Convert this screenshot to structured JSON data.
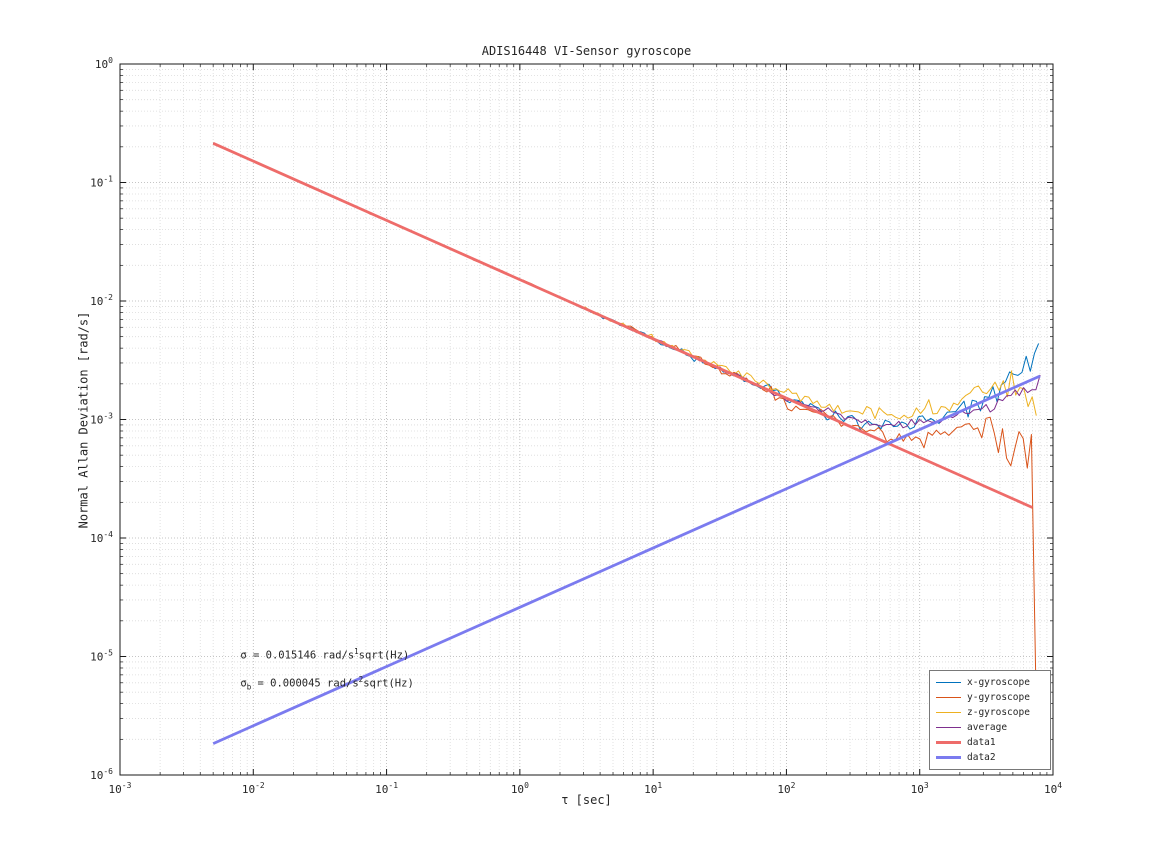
{
  "chart_data": {
    "type": "line",
    "title": "ADIS16448 VI-Sensor gyroscope",
    "xlabel": "τ [sec]",
    "ylabel": "Normal Allan Deviation [rad/s]",
    "x_scale": "log",
    "y_scale": "log",
    "xlim": [
      0.001,
      10000
    ],
    "ylim": [
      1e-06,
      1
    ],
    "x_tick_exponents": [
      -3,
      -2,
      -1,
      0,
      1,
      2,
      3,
      4
    ],
    "y_tick_exponents": [
      -6,
      -5,
      -4,
      -3,
      -2,
      -1,
      0
    ],
    "grid": "dotted major and minor gridlines",
    "legend_position": "lower right",
    "annotation": {
      "position": {
        "tau": 0.008,
        "sigma": 1.15e-05
      },
      "values": {
        "sigma": 0.015146,
        "sigma_b": 4.5e-05
      },
      "lines": [
        [
          {
            "t": "σ"
          },
          {
            "t": " = 0.015146 rad/s"
          },
          {
            "t": "1",
            "sup": true
          },
          {
            "t": "sqrt(Hz)"
          }
        ],
        [
          {
            "t": "σ"
          },
          {
            "t": "b",
            "sub": true
          },
          {
            "t": " = 0.000045 rad/s"
          },
          {
            "t": "2",
            "sup": true
          },
          {
            "t": "sqrt(Hz)"
          }
        ]
      ]
    },
    "series": [
      {
        "name": "x-gyroscope",
        "color": "#0072bd",
        "width": 1,
        "noisy": true,
        "noise_scale": 1,
        "anchors": [
          [
            0.005,
            0.2142
          ],
          [
            0.05,
            0.0677
          ],
          [
            0.5,
            0.02142
          ],
          [
            5,
            0.00677
          ],
          [
            30,
            0.00277
          ],
          [
            100,
            0.00152
          ],
          [
            200,
            0.00112
          ],
          [
            400,
            0.00095
          ],
          [
            700,
            0.00088
          ],
          [
            1000,
            0.00095
          ],
          [
            1500,
            0.00105
          ],
          [
            2200,
            0.00125
          ],
          [
            3000,
            0.0015
          ],
          [
            4500,
            0.0019
          ],
          [
            6000,
            0.0027
          ],
          [
            7000,
            0.0032
          ],
          [
            7800,
            0.004
          ]
        ]
      },
      {
        "name": "y-gyroscope",
        "color": "#d95319",
        "width": 1,
        "noisy": true,
        "noise_scale": 1.15,
        "anchors": [
          [
            0.005,
            0.2142
          ],
          [
            0.05,
            0.0677
          ],
          [
            0.5,
            0.02142
          ],
          [
            5,
            0.00677
          ],
          [
            30,
            0.00277
          ],
          [
            100,
            0.00145
          ],
          [
            200,
            0.00105
          ],
          [
            400,
            0.00082
          ],
          [
            700,
            0.00068
          ],
          [
            1000,
            0.00072
          ],
          [
            1400,
            0.00062
          ],
          [
            1800,
            0.00075
          ],
          [
            2300,
            0.0009
          ],
          [
            2800,
            0.00065
          ],
          [
            3300,
            0.00095
          ],
          [
            3800,
            0.00055
          ],
          [
            4300,
            0.00085
          ],
          [
            4800,
            0.00032
          ],
          [
            5300,
            0.00075
          ],
          [
            5800,
            0.00085
          ],
          [
            6300,
            0.00035
          ],
          [
            6800,
            0.00075
          ],
          [
            7100,
            0.0008
          ],
          [
            7300,
            0.00012
          ],
          [
            7400,
            6.5e-06
          ]
        ]
      },
      {
        "name": "z-gyroscope",
        "color": "#edb120",
        "width": 1,
        "noisy": true,
        "noise_scale": 1,
        "anchors": [
          [
            0.005,
            0.2142
          ],
          [
            0.05,
            0.0677
          ],
          [
            0.5,
            0.02142
          ],
          [
            5,
            0.00677
          ],
          [
            30,
            0.0029
          ],
          [
            80,
            0.0019
          ],
          [
            150,
            0.00145
          ],
          [
            300,
            0.00115
          ],
          [
            600,
            0.00105
          ],
          [
            1000,
            0.00115
          ],
          [
            1500,
            0.00125
          ],
          [
            2200,
            0.00145
          ],
          [
            3000,
            0.0017
          ],
          [
            4000,
            0.0019
          ],
          [
            5000,
            0.002
          ],
          [
            6000,
            0.0018
          ],
          [
            6800,
            0.0014
          ],
          [
            7500,
            0.001
          ]
        ]
      },
      {
        "name": "average",
        "color": "#7e2f8e",
        "width": 1,
        "noisy": true,
        "noise_scale": 0.55,
        "anchors": [
          [
            0.005,
            0.2142
          ],
          [
            0.05,
            0.0677
          ],
          [
            0.5,
            0.02142
          ],
          [
            5,
            0.00677
          ],
          [
            30,
            0.0028
          ],
          [
            100,
            0.0015
          ],
          [
            300,
            0.001
          ],
          [
            600,
            0.00088
          ],
          [
            1000,
            0.00095
          ],
          [
            1500,
            0.001
          ],
          [
            2500,
            0.0012
          ],
          [
            4000,
            0.0014
          ],
          [
            5500,
            0.0016
          ],
          [
            7000,
            0.0019
          ],
          [
            8000,
            0.0021
          ]
        ]
      },
      {
        "name": "data1",
        "color": "#ee6c6a",
        "width": 2.8,
        "noisy": false,
        "noise_scale": 0,
        "anchors": [
          [
            0.005,
            0.2142
          ],
          [
            7000,
            0.000181
          ]
        ]
      },
      {
        "name": "data2",
        "color": "#7b7bef",
        "width": 2.8,
        "noisy": false,
        "noise_scale": 0,
        "anchors": [
          [
            0.005,
            1.84e-06
          ],
          [
            8000,
            0.00233
          ]
        ]
      }
    ]
  }
}
